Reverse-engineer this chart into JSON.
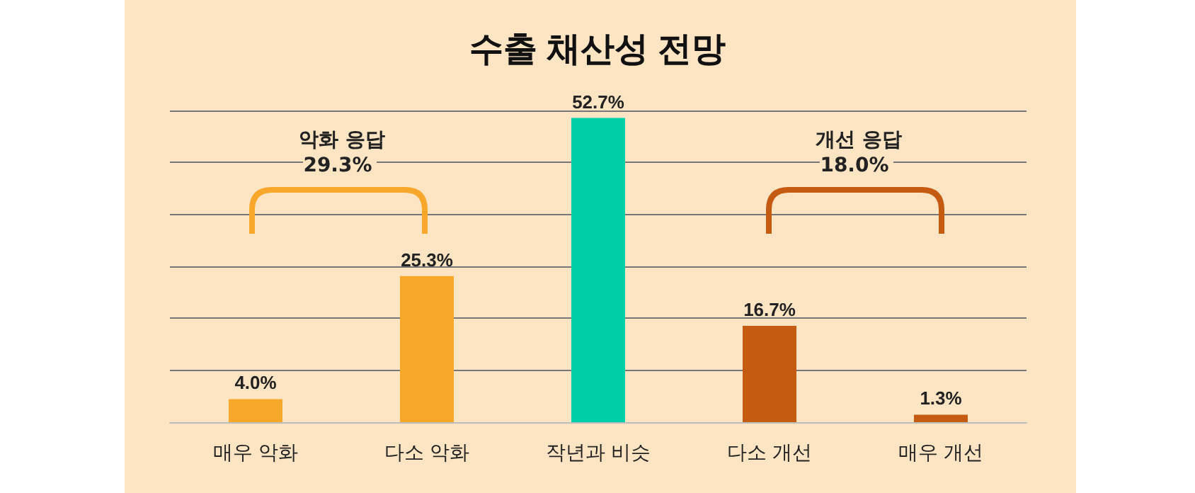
{
  "chart_data": {
    "type": "bar",
    "title": "수출 채산성 전망",
    "categories": [
      "매우 악화",
      "다소 악화",
      "작년과 비슷",
      "다소 개선",
      "매우 개선"
    ],
    "values": [
      4.0,
      25.3,
      52.7,
      16.7,
      1.3
    ],
    "colors": [
      "#f7a72a",
      "#f7a72a",
      "#00d0a8",
      "#c55a11",
      "#c55a11"
    ],
    "value_labels": [
      "4.0%",
      "25.3%",
      "52.7%",
      "16.7%",
      "1.3%"
    ],
    "ylim": [
      0,
      54
    ],
    "yticks": [
      {
        "value": 0,
        "label": null
      },
      {
        "value": 9,
        "label": null
      },
      {
        "value": 18,
        "label": null
      },
      {
        "value": 27,
        "label": null
      },
      {
        "value": 36,
        "label": null
      },
      {
        "value": 45,
        "label": null
      },
      {
        "value": 54,
        "label": null
      }
    ],
    "grid": "y",
    "tick_labels": "x",
    "annotations": [
      "악화 응답\n29.3%",
      "개선 응답\n18.0%"
    ]
  }
}
